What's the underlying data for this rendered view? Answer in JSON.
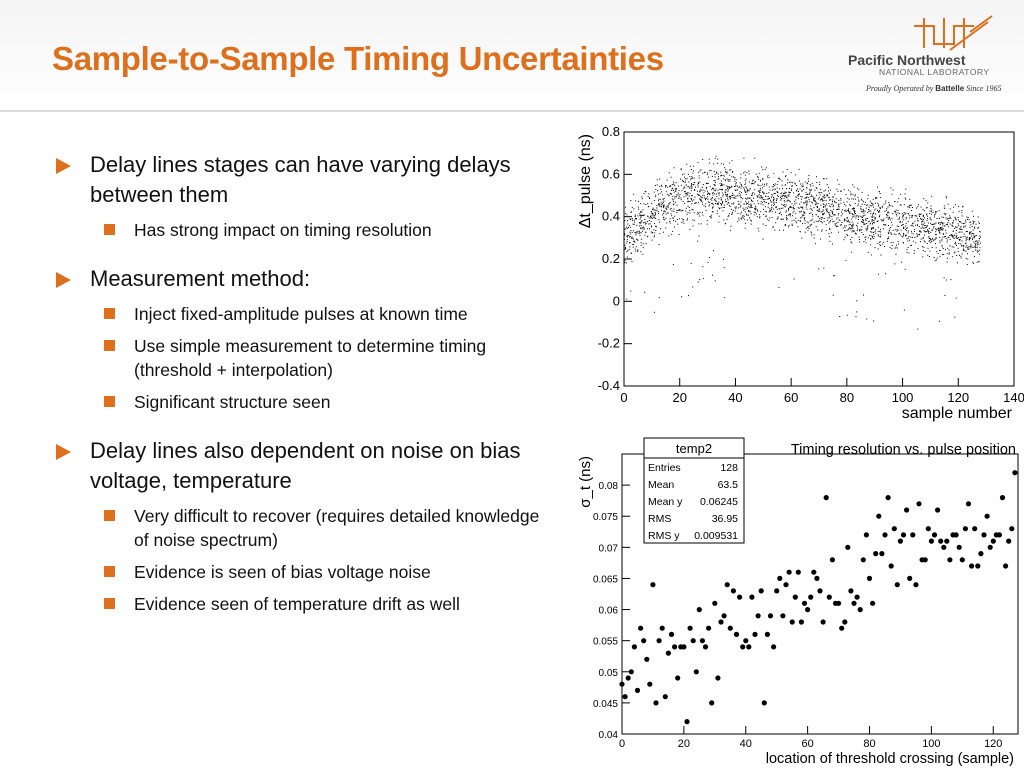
{
  "header": {
    "title": "Sample-to-Sample Timing Uncertainties",
    "logo_line1": "Pacific Northwest",
    "logo_line2": "NATIONAL LABORATORY",
    "logo_line3_a": "Proudly Operated by ",
    "logo_line3_b": "Battelle",
    "logo_line3_c": " Since 1965"
  },
  "content": {
    "bullet1": "Delay lines stages can have varying delays between them",
    "bullet1_sub1": "Has strong impact on timing resolution",
    "bullet2": "Measurement method:",
    "bullet2_sub1": "Inject fixed-amplitude pulses at known time",
    "bullet2_sub2": "Use simple measurement to determine timing (threshold + interpolation)",
    "bullet2_sub3": "Significant structure seen",
    "bullet3": "Delay lines also dependent on noise on bias voltage, temperature",
    "bullet3_sub1": "Very difficult to recover (requires detailed knowledge of noise spectrum)",
    "bullet3_sub2": "Evidence is seen of bias voltage noise",
    "bullet3_sub3": "Evidence seen of temperature drift as well"
  },
  "colors": {
    "accent": "#dd6f1d"
  },
  "chart_data": [
    {
      "type": "scatter",
      "title": "",
      "ylabel": "Δt_pulse (ns)",
      "xlabel": "sample number",
      "xlim": [
        0,
        140
      ],
      "ylim": [
        -0.4,
        0.8
      ],
      "xticks": [
        0,
        20,
        40,
        60,
        80,
        100,
        120,
        140
      ],
      "yticks": [
        -0.4,
        -0.2,
        0,
        0.2,
        0.4,
        0.6,
        0.8
      ],
      "series": [
        {
          "trend_x": [
            0,
            10,
            20,
            30,
            40,
            50,
            60,
            70,
            80,
            90,
            100,
            110,
            120,
            128
          ],
          "trend_y": [
            0.3,
            0.42,
            0.5,
            0.53,
            0.51,
            0.49,
            0.47,
            0.45,
            0.4,
            0.38,
            0.37,
            0.35,
            0.32,
            0.28
          ],
          "spread": 0.08
        }
      ]
    },
    {
      "type": "scatter",
      "title": "Timing resolution vs. pulse position",
      "ylabel": "σ_t (ns)",
      "xlabel": "location of threshold crossing (sample)",
      "xlim": [
        0,
        128
      ],
      "ylim": [
        0.04,
        0.085
      ],
      "xticks": [
        0,
        20,
        40,
        60,
        80,
        100,
        120
      ],
      "yticks": [
        0.04,
        0.045,
        0.05,
        0.055,
        0.06,
        0.065,
        0.07,
        0.075,
        0.08
      ],
      "stats": {
        "name": "temp2",
        "rows": [
          [
            "Entries",
            "128"
          ],
          [
            "Mean",
            "63.5"
          ],
          [
            "Mean y",
            "0.06245"
          ],
          [
            "RMS",
            "36.95"
          ],
          [
            "RMS y",
            "0.009531"
          ]
        ]
      },
      "series": [
        {
          "x": [
            0,
            1,
            2,
            3,
            4,
            5,
            6,
            7,
            8,
            9,
            10,
            11,
            12,
            13,
            14,
            15,
            16,
            17,
            18,
            19,
            20,
            21,
            22,
            23,
            24,
            25,
            26,
            27,
            28,
            29,
            30,
            31,
            32,
            33,
            34,
            35,
            36,
            37,
            38,
            39,
            40,
            41,
            42,
            43,
            44,
            45,
            46,
            47,
            48,
            49,
            50,
            51,
            52,
            53,
            54,
            55,
            56,
            57,
            58,
            59,
            60,
            61,
            62,
            63,
            64,
            65,
            66,
            67,
            68,
            69,
            70,
            71,
            72,
            73,
            74,
            75,
            76,
            77,
            78,
            79,
            80,
            81,
            82,
            83,
            84,
            85,
            86,
            87,
            88,
            89,
            90,
            91,
            92,
            93,
            94,
            95,
            96,
            97,
            98,
            99,
            100,
            101,
            102,
            103,
            104,
            105,
            106,
            107,
            108,
            109,
            110,
            111,
            112,
            113,
            114,
            115,
            116,
            117,
            118,
            119,
            120,
            121,
            122,
            123,
            124,
            125,
            126,
            127
          ],
          "y": [
            0.048,
            0.046,
            0.049,
            0.05,
            0.054,
            0.047,
            0.057,
            0.055,
            0.052,
            0.048,
            0.064,
            0.045,
            0.055,
            0.057,
            0.046,
            0.053,
            0.056,
            0.054,
            0.049,
            0.054,
            0.054,
            0.042,
            0.057,
            0.055,
            0.05,
            0.06,
            0.055,
            0.054,
            0.057,
            0.045,
            0.061,
            0.049,
            0.058,
            0.059,
            0.064,
            0.057,
            0.063,
            0.056,
            0.062,
            0.054,
            0.055,
            0.054,
            0.062,
            0.056,
            0.059,
            0.063,
            0.045,
            0.056,
            0.059,
            0.054,
            0.063,
            0.065,
            0.059,
            0.064,
            0.066,
            0.058,
            0.062,
            0.066,
            0.058,
            0.061,
            0.06,
            0.062,
            0.066,
            0.065,
            0.063,
            0.058,
            0.078,
            0.062,
            0.068,
            0.061,
            0.061,
            0.057,
            0.058,
            0.07,
            0.063,
            0.061,
            0.062,
            0.06,
            0.068,
            0.072,
            0.065,
            0.061,
            0.069,
            0.075,
            0.069,
            0.072,
            0.078,
            0.067,
            0.073,
            0.064,
            0.071,
            0.072,
            0.076,
            0.065,
            0.072,
            0.064,
            0.077,
            0.068,
            0.068,
            0.073,
            0.071,
            0.072,
            0.076,
            0.071,
            0.07,
            0.071,
            0.068,
            0.072,
            0.072,
            0.07,
            0.068,
            0.073,
            0.077,
            0.067,
            0.073,
            0.067,
            0.069,
            0.072,
            0.075,
            0.07,
            0.071,
            0.072,
            0.072,
            0.078,
            0.067,
            0.071,
            0.073,
            0.082
          ]
        }
      ]
    }
  ]
}
